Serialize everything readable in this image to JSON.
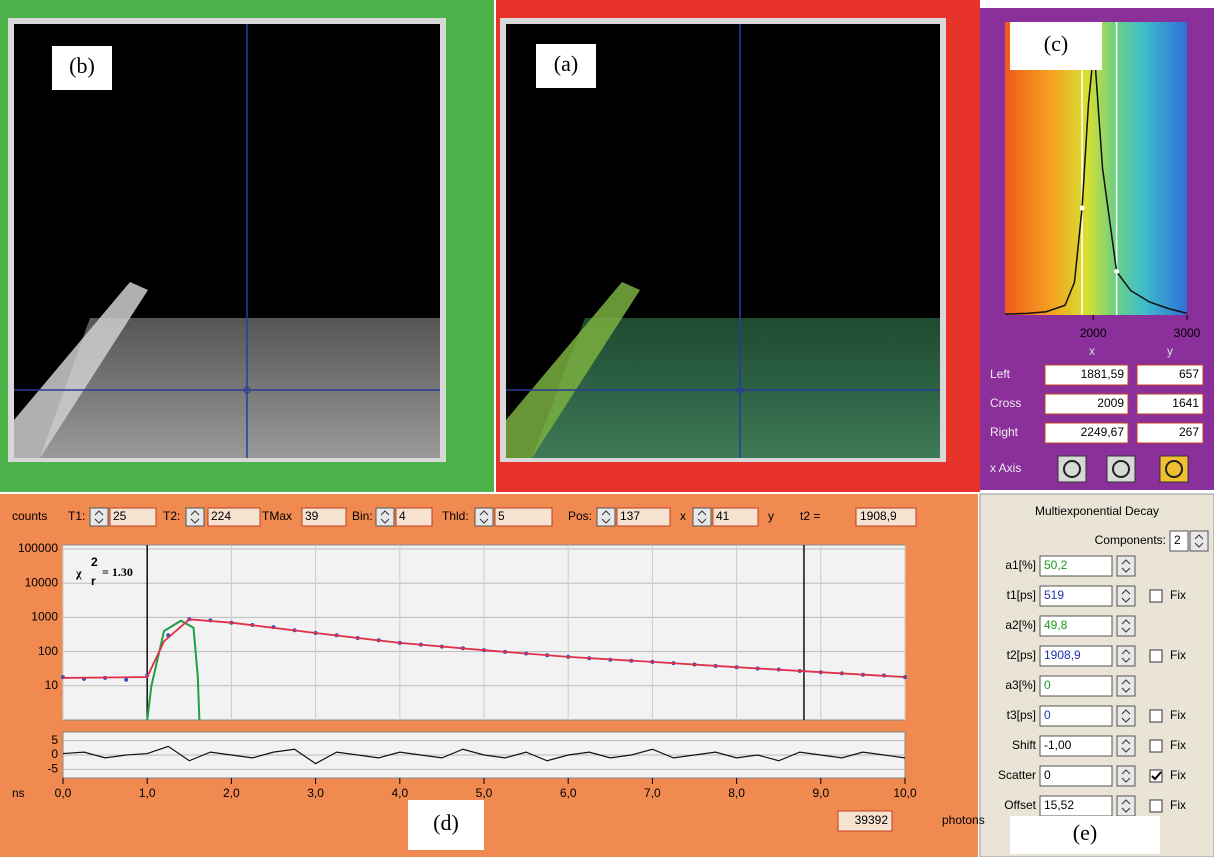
{
  "panels": {
    "b_label": "(b)",
    "a_label": "(a)",
    "c_label": "(c)",
    "d_label": "(d)",
    "e_label": "(e)"
  },
  "histogram": {
    "type": "line",
    "xlim": [
      1060,
      3000
    ],
    "ylim": [
      0,
      1800
    ],
    "xticks": [
      2000,
      3000
    ],
    "x": [
      1060,
      1300,
      1500,
      1700,
      1800,
      1881.59,
      1950,
      2009,
      2100,
      2249.67,
      2400,
      2600,
      2800,
      3000
    ],
    "values": [
      5,
      10,
      20,
      60,
      200,
      657,
      1300,
      1641,
      900,
      267,
      150,
      80,
      40,
      10
    ],
    "column_headers": [
      "x",
      "y"
    ],
    "rows": [
      {
        "name": "Left",
        "x": {
          "value": 1881.59,
          "label": "1881,59"
        },
        "y": 657
      },
      {
        "name": "Cross",
        "x": {
          "value": 2009,
          "label": "2009"
        },
        "y": 1641
      },
      {
        "name": "Right",
        "x": {
          "value": 2249.67,
          "label": "2249,67"
        },
        "y": 267
      }
    ],
    "axis_label": "x Axis"
  },
  "toolbar": {
    "counts": "counts",
    "fields": [
      {
        "label": "T1:",
        "value": 25,
        "spinner": true
      },
      {
        "label": "T2:",
        "value": 224,
        "spinner": true
      },
      {
        "label": "TMax",
        "value": 39,
        "spinner": false
      },
      {
        "label": "Bin:",
        "value": 4,
        "spinner": true
      },
      {
        "label": "Thld:",
        "value": 5,
        "spinner": true
      },
      {
        "label": "Pos:",
        "value": 137,
        "spinner": true,
        "suffix": "x"
      },
      {
        "value": 41,
        "spinner": true,
        "suffix": "y"
      }
    ],
    "t2_label": "t2 =",
    "t2_value": {
      "value": 1908.9,
      "label": "1908,9"
    }
  },
  "decay": {
    "type": "scatter",
    "log_y": true,
    "xlim": [
      0,
      10
    ],
    "ylim": [
      1,
      100000
    ],
    "yticks": [
      10,
      100,
      1000,
      10000,
      100000
    ],
    "xticks": [
      {
        "value": 0,
        "label": "0,0"
      },
      {
        "value": 1,
        "label": "1,0"
      },
      {
        "value": 2,
        "label": "2,0"
      },
      {
        "value": 3,
        "label": "3,0"
      },
      {
        "value": 4,
        "label": "4,0"
      },
      {
        "value": 5,
        "label": "5,0"
      },
      {
        "value": 6,
        "label": "6,0"
      },
      {
        "value": 7,
        "label": "7,0"
      },
      {
        "value": 8,
        "label": "8,0"
      },
      {
        "value": 9,
        "label": "9,0"
      },
      {
        "value": 10,
        "label": "10,0"
      }
    ],
    "xlabel": "ns",
    "chi_symbol": "χ",
    "chi_sup": "2",
    "chi_sub": "r",
    "chi_value": "= 1.30",
    "cursors": [
      1.0,
      8.8
    ],
    "data": {
      "color": "#3050c0",
      "x": [
        0,
        0.25,
        0.5,
        0.75,
        1,
        1.25,
        1.5,
        1.75,
        2,
        2.25,
        2.5,
        2.75,
        3,
        3.25,
        3.5,
        3.75,
        4,
        4.25,
        4.5,
        4.75,
        5,
        5.25,
        5.5,
        5.75,
        6,
        6.25,
        6.5,
        6.75,
        7,
        7.25,
        7.5,
        7.75,
        8,
        8.25,
        8.5,
        8.75,
        9,
        9.25,
        9.5,
        9.75,
        10
      ],
      "values": [
        18,
        16,
        17,
        15,
        20,
        300,
        880,
        820,
        700,
        600,
        520,
        420,
        350,
        300,
        250,
        215,
        180,
        160,
        140,
        125,
        110,
        98,
        88,
        78,
        70,
        64,
        58,
        54,
        50,
        46,
        42,
        38,
        35,
        32,
        30,
        27,
        25,
        23,
        21,
        20,
        18
      ]
    },
    "fit": {
      "color": "#e0304a",
      "x": [
        0,
        1,
        1.2,
        1.5,
        2,
        3,
        4,
        5,
        6,
        7,
        8,
        9,
        10
      ],
      "values": [
        17,
        18,
        200,
        880,
        700,
        350,
        180,
        110,
        70,
        50,
        35,
        25,
        18
      ]
    },
    "irf": {
      "color": "#20a040",
      "x": [
        1,
        1.05,
        1.2,
        1.4,
        1.55,
        1.6,
        1.62
      ],
      "values": [
        1,
        10,
        400,
        800,
        500,
        20,
        1
      ]
    },
    "residuals": {
      "ylim": [
        -8,
        8
      ],
      "yticks": [
        5,
        0,
        -5
      ],
      "values": [
        0.5,
        1,
        -1,
        0,
        0.5,
        3,
        -2,
        1,
        0,
        -1,
        1,
        2,
        -3,
        1,
        0,
        -1,
        1,
        0,
        -1,
        2,
        0,
        -1,
        1,
        -2,
        0,
        1,
        -1,
        0,
        2,
        -1,
        0,
        1,
        -1,
        0,
        -2,
        1,
        0,
        -1,
        1,
        0,
        -1
      ]
    },
    "photons": 39392,
    "photons_label": "photons"
  },
  "fit_panel": {
    "title": "Multiexponential Decay",
    "components_label": "Components:",
    "components": 2,
    "fix_label": "Fix",
    "params": [
      {
        "label": "a1[%]",
        "value": {
          "value": 50.2,
          "label": "50,2"
        },
        "color": "#1a9a1a"
      },
      {
        "label": "t1[ps]",
        "value": 519,
        "color": "#2030b0",
        "fix": false
      },
      {
        "label": "a2[%]",
        "value": {
          "value": 49.8,
          "label": "49,8"
        },
        "color": "#1a9a1a"
      },
      {
        "label": "t2[ps]",
        "value": {
          "value": 1908.9,
          "label": "1908,9"
        },
        "color": "#2030b0",
        "fix": false
      },
      {
        "label": "a3[%]",
        "value": 0,
        "color": "#1a9a1a"
      },
      {
        "label": "t3[ps]",
        "value": 0,
        "color": "#2030b0",
        "fix": false
      },
      {
        "label": "Shift",
        "value": {
          "value": -1,
          "label": "-1,00"
        },
        "color": "#000000",
        "fix": false
      },
      {
        "label": "Scatter",
        "value": 0,
        "color": "#000000",
        "fix": true
      },
      {
        "label": "Offset",
        "value": {
          "value": 15.52,
          "label": "15,52"
        },
        "color": "#000000",
        "fix": false
      }
    ]
  }
}
